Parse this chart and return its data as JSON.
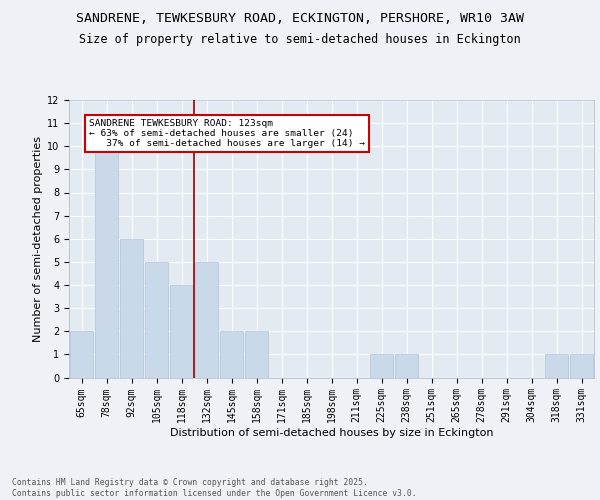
{
  "title_line1": "SANDRENE, TEWKESBURY ROAD, ECKINGTON, PERSHORE, WR10 3AW",
  "title_line2": "Size of property relative to semi-detached houses in Eckington",
  "xlabel": "Distribution of semi-detached houses by size in Eckington",
  "ylabel": "Number of semi-detached properties",
  "categories": [
    "65sqm",
    "78sqm",
    "92sqm",
    "105sqm",
    "118sqm",
    "132sqm",
    "145sqm",
    "158sqm",
    "171sqm",
    "185sqm",
    "198sqm",
    "211sqm",
    "225sqm",
    "238sqm",
    "251sqm",
    "265sqm",
    "278sqm",
    "291sqm",
    "304sqm",
    "318sqm",
    "331sqm"
  ],
  "values": [
    2,
    10,
    6,
    5,
    4,
    5,
    2,
    2,
    0,
    0,
    0,
    0,
    1,
    1,
    0,
    0,
    0,
    0,
    0,
    1,
    1
  ],
  "bar_color": "#c9d9ea",
  "bar_edge_color": "#b0c4d8",
  "property_bin_index": 4,
  "marker_line_color": "#990000",
  "annotation_text": "SANDRENE TEWKESBURY ROAD: 123sqm\n← 63% of semi-detached houses are smaller (24)\n   37% of semi-detached houses are larger (14) →",
  "annotation_box_color": "#ffffff",
  "annotation_box_edge_color": "#cc0000",
  "ylim": [
    0,
    12
  ],
  "yticks": [
    0,
    1,
    2,
    3,
    4,
    5,
    6,
    7,
    8,
    9,
    10,
    11,
    12
  ],
  "footer": "Contains HM Land Registry data © Crown copyright and database right 2025.\nContains public sector information licensed under the Open Government Licence v3.0.",
  "bg_color": "#eef2f7",
  "plot_bg_color": "#e4eaf2",
  "grid_color": "#ffffff",
  "title_fontsize": 9.5,
  "subtitle_fontsize": 8.5,
  "tick_fontsize": 7,
  "axis_label_fontsize": 8,
  "footer_fontsize": 5.8
}
